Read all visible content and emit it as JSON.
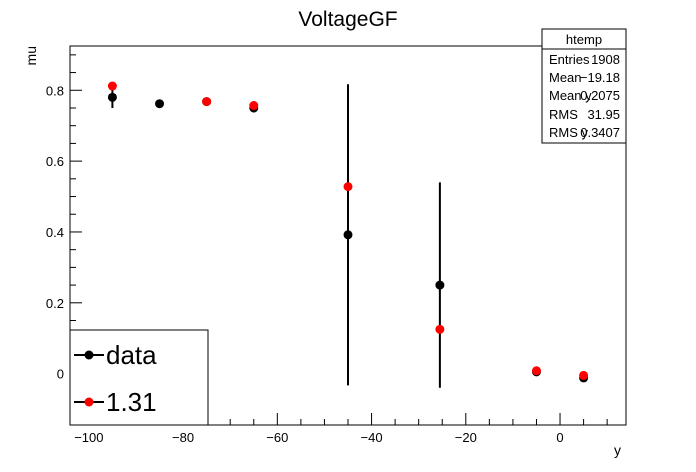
{
  "chart_data": {
    "type": "scatter",
    "title": "VoltageGF",
    "xlabel": "y",
    "ylabel": "mu",
    "xlim": [
      -104,
      14
    ],
    "ylim": [
      -0.145,
      0.925
    ],
    "x_ticks": [
      -100,
      -80,
      -60,
      -40,
      -20,
      0
    ],
    "x_tick_labels": [
      "−100",
      "−80",
      "−60",
      "−40",
      "−20",
      "0"
    ],
    "y_ticks": [
      0,
      0.2,
      0.4,
      0.6,
      0.8
    ],
    "y_tick_labels": [
      "0",
      "0.2",
      "0.4",
      "0.6",
      "0.8"
    ],
    "grid": false,
    "legend_position": "bottom-left",
    "series": [
      {
        "name": "data",
        "color": "#000000",
        "points": [
          {
            "x": -95,
            "y": 0.78,
            "err": 0.03
          },
          {
            "x": -85,
            "y": 0.762,
            "err": 0.005
          },
          {
            "x": -75,
            "y": 0.768,
            "err": 0.005
          },
          {
            "x": -65,
            "y": 0.75,
            "err": 0.012
          },
          {
            "x": -45,
            "y": 0.392,
            "err": 0.425
          },
          {
            "x": -25.5,
            "y": 0.25,
            "err": 0.29
          },
          {
            "x": -5,
            "y": 0.005,
            "err": 0.0
          },
          {
            "x": 5,
            "y": -0.012,
            "err": 0.0
          }
        ]
      },
      {
        "name": "1.31",
        "color": "#ff0000",
        "points": [
          {
            "x": -95,
            "y": 0.812
          },
          {
            "x": -75,
            "y": 0.768
          },
          {
            "x": -65,
            "y": 0.757
          },
          {
            "x": -45,
            "y": 0.528
          },
          {
            "x": -25.5,
            "y": 0.125
          },
          {
            "x": -5,
            "y": 0.008
          },
          {
            "x": 5,
            "y": -0.005
          }
        ]
      }
    ]
  },
  "stats_box": {
    "title": "htemp",
    "rows": [
      {
        "label": "Entries",
        "value": "1908"
      },
      {
        "label": "Mean",
        "value": "−19.18"
      },
      {
        "label": "Mean y",
        "value": "0.2075"
      },
      {
        "label": "RMS",
        "value": "31.95"
      },
      {
        "label": "RMS y",
        "value": "0.3407"
      }
    ]
  }
}
